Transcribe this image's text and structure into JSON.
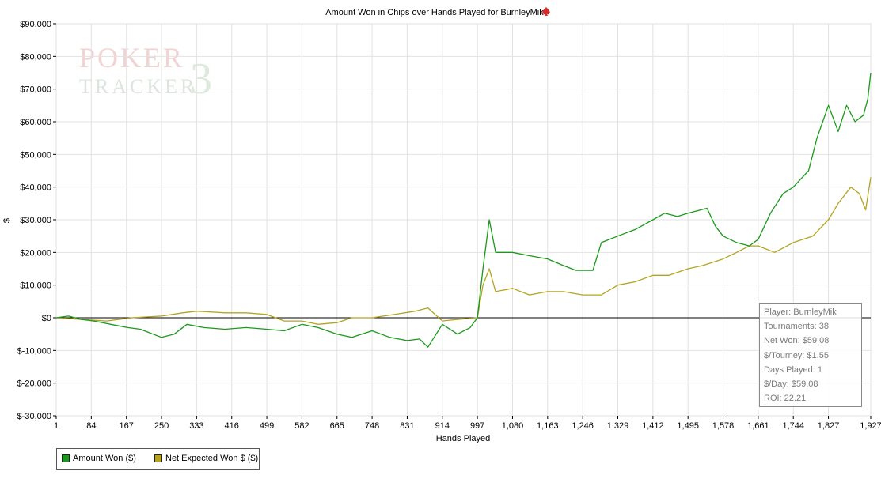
{
  "chart_data": {
    "type": "line",
    "title": "Amount Won in Chips over Hands Played for BurnleyMik",
    "xlabel": "Hands Played",
    "ylabel": "$",
    "xlim": [
      1,
      1927
    ],
    "ylim": [
      -30000,
      90000
    ],
    "x_ticks": [
      "1",
      "84",
      "167",
      "250",
      "333",
      "416",
      "499",
      "582",
      "665",
      "748",
      "831",
      "914",
      "997",
      "1,080",
      "1,163",
      "1,246",
      "1,329",
      "1,412",
      "1,495",
      "1,578",
      "1,661",
      "1,744",
      "1,827",
      "1,927"
    ],
    "y_ticks": [
      "$90,000",
      "$80,000",
      "$70,000",
      "$60,000",
      "$50,000",
      "$40,000",
      "$30,000",
      "$20,000",
      "$10,000",
      "$0",
      "$-10,000",
      "$-20,000",
      "$-30,000"
    ],
    "series": [
      {
        "name": "Amount Won ($)",
        "color": "#1a9a1a",
        "points": [
          [
            1,
            0
          ],
          [
            30,
            500
          ],
          [
            60,
            -500
          ],
          [
            90,
            -1000
          ],
          [
            130,
            -2000
          ],
          [
            170,
            -3000
          ],
          [
            200,
            -3500
          ],
          [
            250,
            -6000
          ],
          [
            280,
            -5000
          ],
          [
            310,
            -2000
          ],
          [
            350,
            -3000
          ],
          [
            400,
            -3500
          ],
          [
            450,
            -3000
          ],
          [
            499,
            -3500
          ],
          [
            540,
            -4000
          ],
          [
            582,
            -2000
          ],
          [
            620,
            -3000
          ],
          [
            665,
            -5000
          ],
          [
            700,
            -6000
          ],
          [
            748,
            -4000
          ],
          [
            790,
            -6000
          ],
          [
            831,
            -7000
          ],
          [
            860,
            -6500
          ],
          [
            880,
            -9000
          ],
          [
            914,
            -2000
          ],
          [
            950,
            -5000
          ],
          [
            980,
            -3000
          ],
          [
            997,
            0
          ],
          [
            1010,
            15000
          ],
          [
            1025,
            30000
          ],
          [
            1040,
            20000
          ],
          [
            1080,
            20000
          ],
          [
            1120,
            19000
          ],
          [
            1163,
            18000
          ],
          [
            1200,
            16000
          ],
          [
            1230,
            14500
          ],
          [
            1270,
            14500
          ],
          [
            1290,
            23000
          ],
          [
            1329,
            25000
          ],
          [
            1370,
            27000
          ],
          [
            1412,
            30000
          ],
          [
            1440,
            32000
          ],
          [
            1470,
            31000
          ],
          [
            1495,
            32000
          ],
          [
            1540,
            33500
          ],
          [
            1560,
            28000
          ],
          [
            1578,
            25000
          ],
          [
            1610,
            23000
          ],
          [
            1640,
            22000
          ],
          [
            1661,
            24000
          ],
          [
            1690,
            32000
          ],
          [
            1720,
            38000
          ],
          [
            1744,
            40000
          ],
          [
            1780,
            45000
          ],
          [
            1800,
            55000
          ],
          [
            1827,
            65000
          ],
          [
            1850,
            57000
          ],
          [
            1870,
            65000
          ],
          [
            1890,
            60000
          ],
          [
            1910,
            62000
          ],
          [
            1920,
            67000
          ],
          [
            1927,
            75000
          ]
        ]
      },
      {
        "name": "Net Expected Won $ ($)",
        "color": "#b5a31f",
        "points": [
          [
            1,
            0
          ],
          [
            60,
            -500
          ],
          [
            120,
            -1000
          ],
          [
            180,
            0
          ],
          [
            250,
            500
          ],
          [
            300,
            1500
          ],
          [
            333,
            2000
          ],
          [
            400,
            1500
          ],
          [
            450,
            1500
          ],
          [
            499,
            1000
          ],
          [
            540,
            -1000
          ],
          [
            582,
            -1000
          ],
          [
            620,
            -2000
          ],
          [
            665,
            -1500
          ],
          [
            700,
            0
          ],
          [
            748,
            0
          ],
          [
            800,
            1000
          ],
          [
            850,
            2000
          ],
          [
            880,
            3000
          ],
          [
            914,
            -1000
          ],
          [
            950,
            -500
          ],
          [
            997,
            0
          ],
          [
            1010,
            10000
          ],
          [
            1025,
            15000
          ],
          [
            1040,
            8000
          ],
          [
            1080,
            9000
          ],
          [
            1120,
            7000
          ],
          [
            1163,
            8000
          ],
          [
            1200,
            8000
          ],
          [
            1246,
            7000
          ],
          [
            1290,
            7000
          ],
          [
            1329,
            10000
          ],
          [
            1370,
            11000
          ],
          [
            1412,
            13000
          ],
          [
            1450,
            13000
          ],
          [
            1495,
            15000
          ],
          [
            1530,
            16000
          ],
          [
            1578,
            18000
          ],
          [
            1610,
            20000
          ],
          [
            1640,
            22000
          ],
          [
            1661,
            22000
          ],
          [
            1700,
            20000
          ],
          [
            1744,
            23000
          ],
          [
            1790,
            25000
          ],
          [
            1827,
            30000
          ],
          [
            1850,
            35000
          ],
          [
            1880,
            40000
          ],
          [
            1900,
            38000
          ],
          [
            1915,
            33000
          ],
          [
            1927,
            43000
          ]
        ]
      }
    ],
    "legend_position": "bottom-left",
    "grid": true
  },
  "watermark": {
    "line1": "POKER",
    "line2": "TRACKER",
    "badge": "3"
  },
  "stats": [
    "Player: BurnleyMik",
    "Tournaments: 38",
    "Net Won: $59.08",
    "$/Tourney: $1.55",
    "Days Played: 1",
    "$/Day: $59.08",
    "ROI: 22.21"
  ],
  "colors": {
    "grid": "#e2e2e2",
    "spade": "#d62b2b"
  }
}
